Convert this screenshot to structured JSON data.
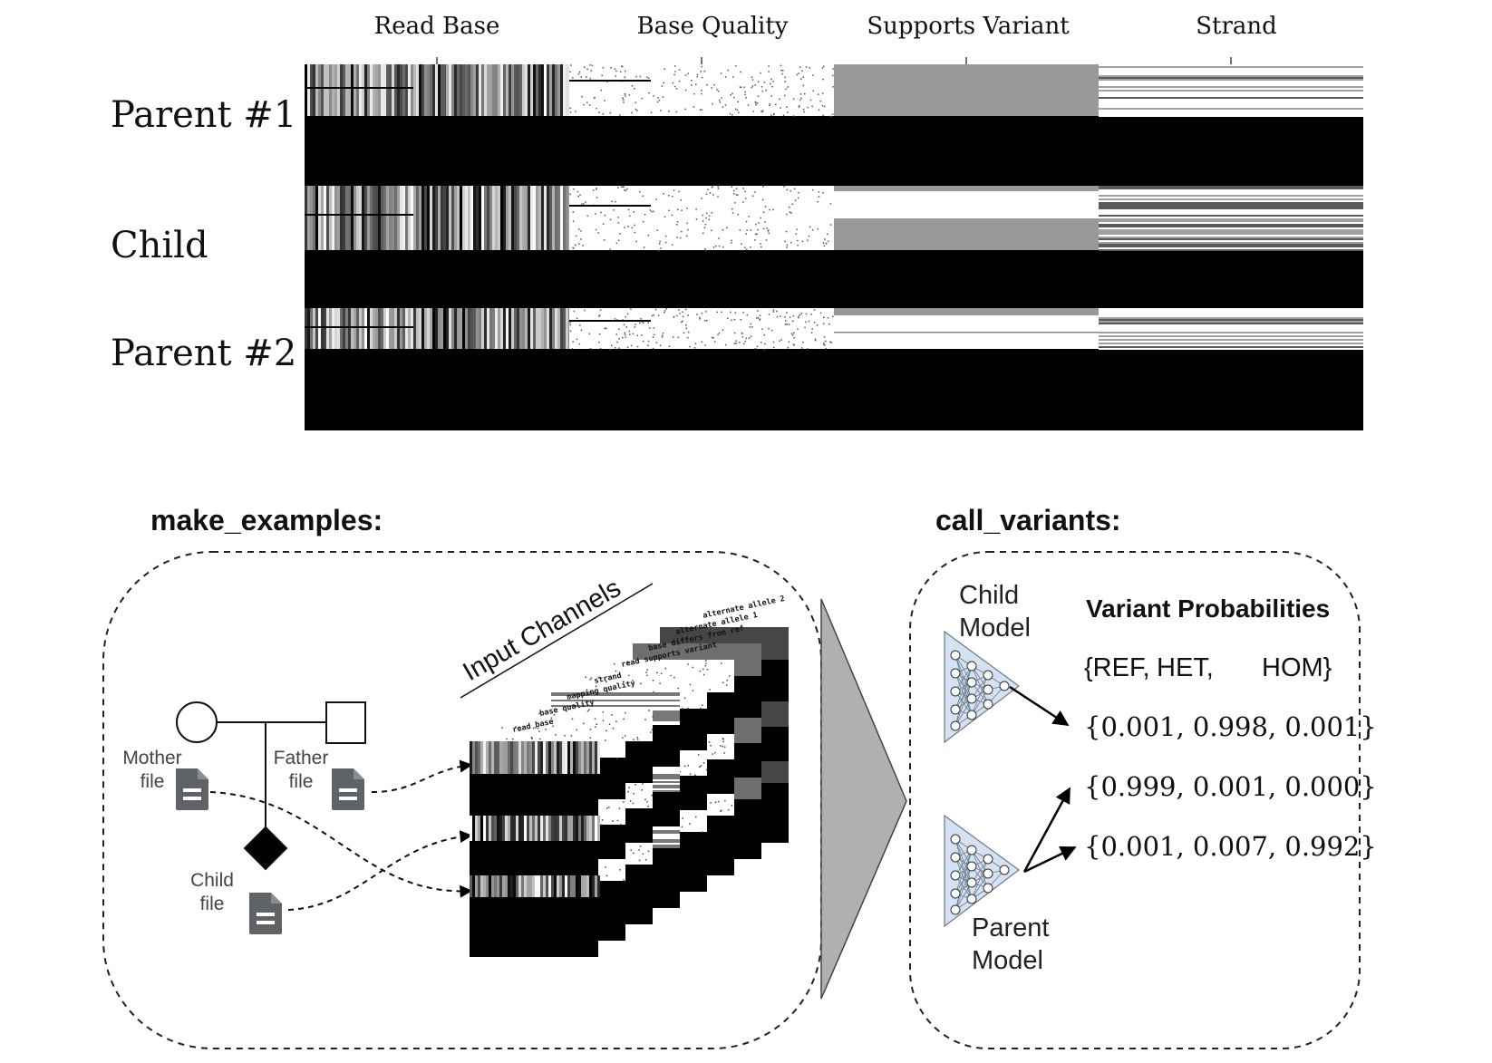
{
  "pileup": {
    "columns": [
      "Read Base",
      "Base Quality",
      "Supports Variant",
      "Strand"
    ],
    "rows": [
      "Parent #1",
      "Child",
      "Parent #2"
    ]
  },
  "make_examples": {
    "title": "make_examples:",
    "mother_label": [
      "Mother",
      "file"
    ],
    "father_label": [
      "Father",
      "file"
    ],
    "child_label": [
      "Child",
      "file"
    ],
    "stack_title": "Input Channels",
    "channels": [
      "read base",
      "base quality",
      "mapping quality",
      "strand",
      "read supports variant",
      "base differs from ref",
      "alternate allele 1",
      "alternate allele 2"
    ]
  },
  "call_variants": {
    "title": "call_variants:",
    "child_model": [
      "Child",
      "Model"
    ],
    "parent_model": [
      "Parent",
      "Model"
    ],
    "probs_title": "Variant Probabilities",
    "classes": [
      "{REF,",
      "HET,",
      "HOM}"
    ],
    "prob_rows": [
      "{0.001, 0.998, 0.001}",
      "{0.999, 0.001, 0.000}",
      "{0.001, 0.007, 0.992}"
    ]
  },
  "colors": {
    "black": "#000000",
    "gray": "#999999",
    "node_fill": "#d4e2f1",
    "doc_icon": "#5f6368"
  }
}
